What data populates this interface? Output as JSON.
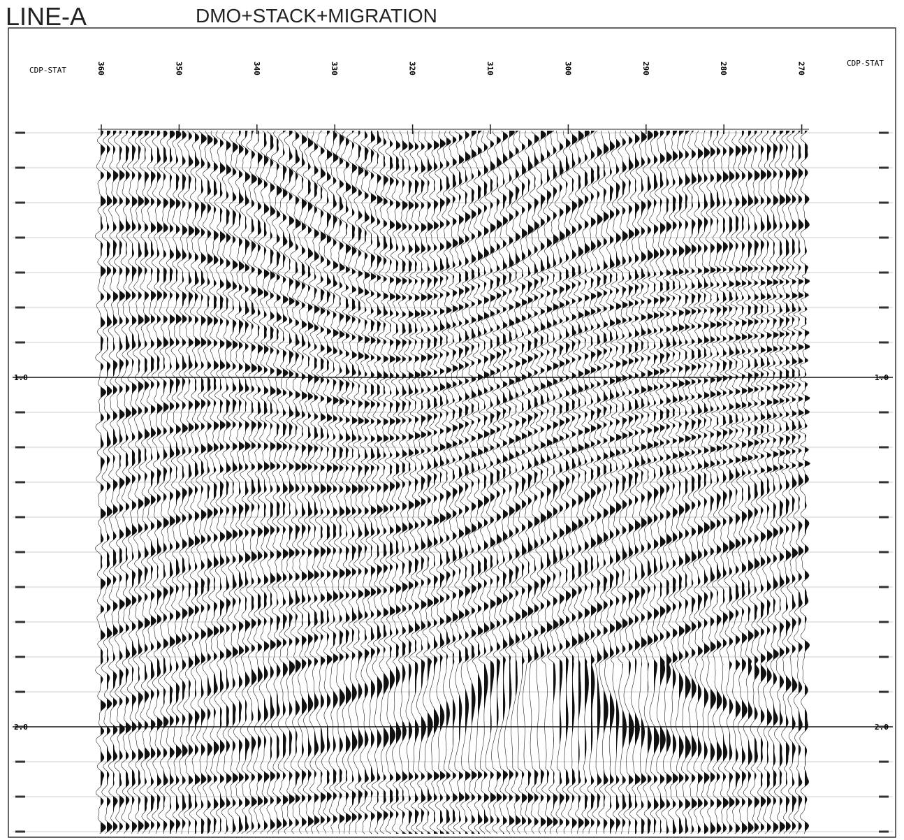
{
  "header": {
    "line": "LINE-A",
    "title": "DMO+STACK+MIGRATION"
  },
  "section": {
    "cdp_label_left": "CDP-STAT",
    "cdp_label_right": "CDP-STAT",
    "cdp_ticks": [
      "360",
      "350",
      "340",
      "330",
      "320",
      "310",
      "300",
      "290",
      "280",
      "270"
    ],
    "time_ticks": [
      "1.0",
      "2.0"
    ]
  }
}
